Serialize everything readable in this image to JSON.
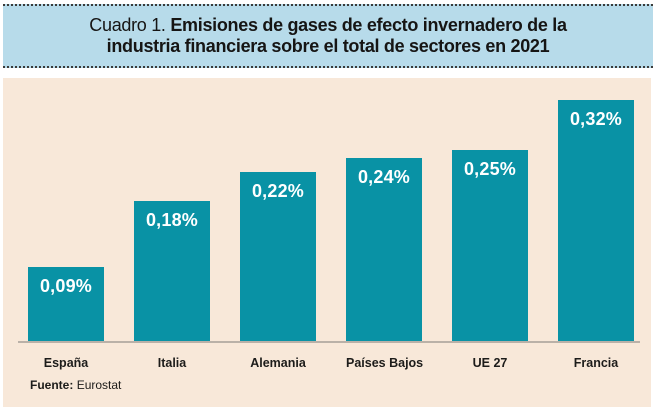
{
  "header": {
    "kicker": "Cuadro 1.",
    "title_line1": "Emisiones de gases de efecto invernadero de la",
    "title_line2": "industria financiera sobre el total de sectores en 2021"
  },
  "chart_data": {
    "type": "bar",
    "title": "Cuadro 1. Emisiones de gases de efecto invernadero de la industria financiera sobre el total de sectores en 2021",
    "categories": [
      "España",
      "Italia",
      "Alemania",
      "Países Bajos",
      "UE 27",
      "Francia"
    ],
    "values": [
      0.09,
      0.18,
      0.22,
      0.24,
      0.25,
      0.32
    ],
    "value_labels": [
      "0,09%",
      "0,18%",
      "0,22%",
      "0,24%",
      "0,25%",
      "0,32%"
    ],
    "xlabel": "",
    "ylabel": "",
    "ylim": [
      0,
      0.35
    ],
    "grid": false,
    "legend": false,
    "y_axis_visible": false,
    "value_labels_position": "inside-top",
    "source": "Fuente: Eurostat"
  },
  "source": {
    "label": "Fuente:",
    "value": "Eurostat"
  },
  "colors": {
    "header_bg": "#b7dbea",
    "panel_bg": "#f8e8d9",
    "bar": "#0992a5",
    "bar_value_text": "#ffffff",
    "baseline": "#bab1a8",
    "text": "#1d1c1a"
  }
}
